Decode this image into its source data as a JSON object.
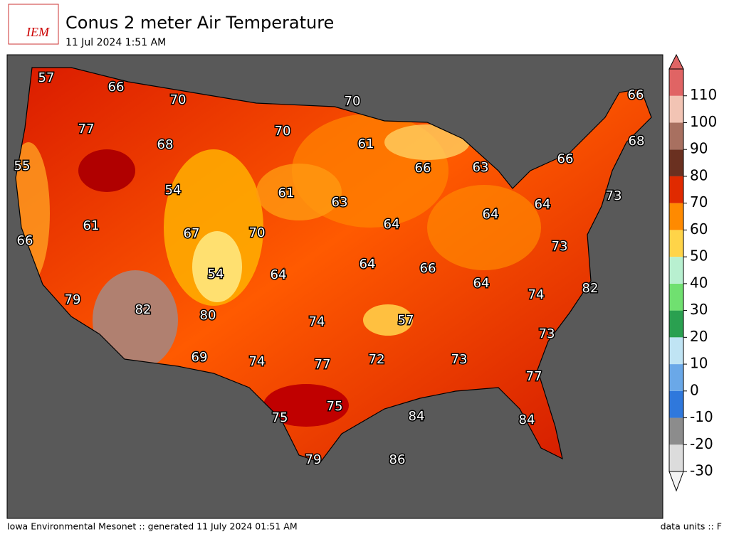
{
  "header": {
    "logo": "IEM",
    "title": "Conus 2 meter Air Temperature",
    "subtitle": "11 Jul 2024 1:51 AM"
  },
  "map": {
    "temperatures": [
      57,
      66,
      70,
      70,
      66,
      77,
      70,
      68,
      61,
      68,
      55,
      66,
      63,
      66,
      54,
      61,
      63,
      73,
      64,
      64,
      61,
      67,
      64,
      70,
      66,
      73,
      54,
      64,
      64,
      66,
      64,
      82,
      79,
      82,
      74,
      80,
      57,
      74,
      73,
      69,
      74,
      77,
      72,
      73,
      77,
      75,
      75,
      84,
      84,
      79,
      86
    ]
  },
  "colorbar": {
    "lim": [
      -30,
      120
    ],
    "ticks": [
      -30,
      -20,
      -10,
      0,
      10,
      20,
      30,
      40,
      50,
      60,
      70,
      80,
      90,
      100,
      110
    ],
    "colors": [
      "#dcdcdc",
      "#8c8c8c",
      "#2f78dc",
      "#6aa8e8",
      "#c0e4f4",
      "#2aa050",
      "#70e070",
      "#b8f0d0",
      "#ffd448",
      "#ff8a00",
      "#e02a00",
      "#6a3020",
      "#a87060",
      "#f2c4b4",
      "#e06464"
    ]
  },
  "footer": {
    "left": "Iowa Environmental Mesonet :: generated 11 July 2024 01:51 AM",
    "right": "data units :: F"
  }
}
